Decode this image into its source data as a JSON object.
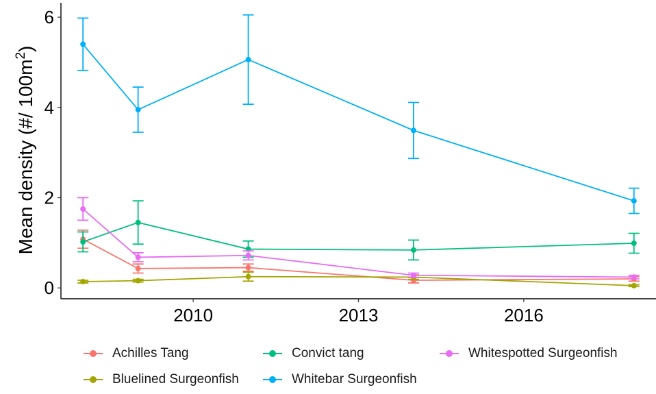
{
  "chart_data": {
    "type": "line",
    "ylabel_main": "Mean density (#/ 100m",
    "ylabel_sup": "2",
    "ylabel_close": ")",
    "xlabel": "",
    "xlim": [
      2007.6,
      2018.4
    ],
    "ylim": [
      -0.24,
      6.32
    ],
    "xticks": [
      2010,
      2013,
      2016
    ],
    "yticks": [
      0,
      2,
      4,
      6
    ],
    "grid": false,
    "legend_position": "bottom",
    "series": [
      {
        "name": "Achilles Tang",
        "color": "#F8766D",
        "x": [
          2008,
          2009,
          2011,
          2014,
          2018
        ],
        "y": [
          1.08,
          0.43,
          0.45,
          0.17,
          0.2
        ],
        "err": [
          0.2,
          0.1,
          0.08,
          0.06,
          0.05
        ]
      },
      {
        "name": "Bluelined Surgeonfish",
        "color": "#A3A500",
        "x": [
          2008,
          2009,
          2011,
          2014,
          2018
        ],
        "y": [
          0.14,
          0.16,
          0.25,
          0.24,
          0.05
        ],
        "err": [
          0.03,
          0.03,
          0.1,
          0.05,
          0.02
        ]
      },
      {
        "name": "Convict tang",
        "color": "#00BF7D",
        "x": [
          2008,
          2009,
          2011,
          2014,
          2018
        ],
        "y": [
          1.02,
          1.45,
          0.86,
          0.84,
          0.99
        ],
        "err": [
          0.22,
          0.48,
          0.18,
          0.22,
          0.22
        ]
      },
      {
        "name": "Whitebar Surgeonfish",
        "color": "#00B0F6",
        "x": [
          2008,
          2009,
          2011,
          2014,
          2018
        ],
        "y": [
          5.4,
          3.95,
          5.06,
          3.49,
          1.93
        ],
        "err": [
          0.58,
          0.5,
          0.99,
          0.62,
          0.28
        ]
      },
      {
        "name": "Whitespotted Surgeonfish",
        "color": "#E76BF3",
        "x": [
          2008,
          2009,
          2011,
          2014,
          2018
        ],
        "y": [
          1.75,
          0.68,
          0.72,
          0.28,
          0.24
        ],
        "err": [
          0.25,
          0.1,
          0.1,
          0.05,
          0.04
        ]
      }
    ]
  },
  "legend_order": [
    0,
    2,
    4,
    1,
    3
  ]
}
